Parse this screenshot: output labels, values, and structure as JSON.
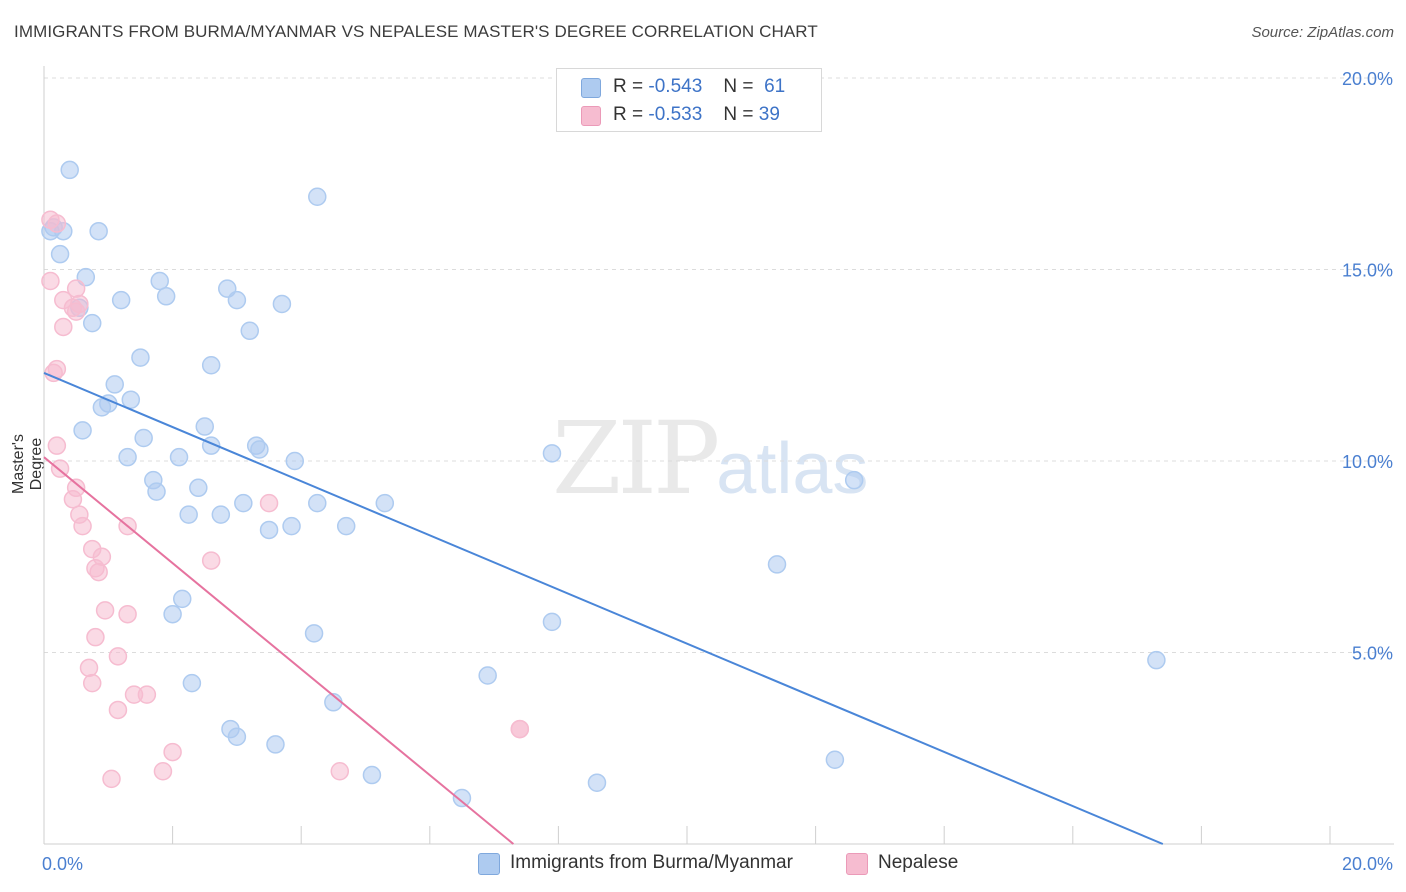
{
  "title": "IMMIGRANTS FROM BURMA/MYANMAR VS NEPALESE MASTER'S DEGREE CORRELATION CHART",
  "source": "Source: ZipAtlas.com",
  "watermark": {
    "zip": "ZIP",
    "atlas": "atlas"
  },
  "legend": {
    "rows": [
      {
        "r_label": "R =",
        "r_value": "-0.543",
        "n_label": "N =",
        "n_value": "61",
        "color": "#aecbf0"
      },
      {
        "r_label": "R =",
        "r_value": "-0.533",
        "n_label": "N =",
        "n_value": "39",
        "color": "#f6bcd0"
      }
    ]
  },
  "chart_data": {
    "type": "scatter",
    "title": "IMMIGRANTS FROM BURMA/MYANMAR VS NEPALESE MASTER'S DEGREE CORRELATION CHART",
    "xlabel": "",
    "ylabel": "Master's Degree",
    "xlim": [
      0,
      20
    ],
    "ylim": [
      0,
      20
    ],
    "x_tick_labels": [
      "0.0%",
      "20.0%"
    ],
    "y_ticks": [
      5,
      10,
      15,
      20
    ],
    "y_tick_labels": [
      "5.0%",
      "10.0%",
      "15.0%",
      "20.0%"
    ],
    "grid": true,
    "legend_position": "top-center",
    "series": [
      {
        "name": "Immigrants from Burma/Myanmar",
        "color": "#4a86d8",
        "fill": "#aecbf0",
        "points": [
          [
            0.15,
            16.1
          ],
          [
            0.1,
            16.0
          ],
          [
            0.3,
            16.0
          ],
          [
            0.25,
            15.4
          ],
          [
            0.4,
            17.6
          ],
          [
            0.85,
            16.0
          ],
          [
            0.65,
            14.8
          ],
          [
            0.55,
            14.0
          ],
          [
            0.75,
            13.6
          ],
          [
            1.2,
            14.2
          ],
          [
            1.8,
            14.7
          ],
          [
            1.9,
            14.3
          ],
          [
            2.85,
            14.5
          ],
          [
            3.0,
            14.2
          ],
          [
            3.7,
            14.1
          ],
          [
            3.2,
            13.4
          ],
          [
            1.5,
            12.7
          ],
          [
            2.6,
            12.5
          ],
          [
            4.25,
            16.9
          ],
          [
            1.1,
            12.0
          ],
          [
            1.0,
            11.5
          ],
          [
            1.35,
            11.6
          ],
          [
            0.9,
            11.4
          ],
          [
            0.6,
            10.8
          ],
          [
            1.55,
            10.6
          ],
          [
            2.5,
            10.9
          ],
          [
            3.3,
            10.4
          ],
          [
            3.35,
            10.3
          ],
          [
            2.6,
            10.4
          ],
          [
            1.3,
            10.1
          ],
          [
            2.1,
            10.1
          ],
          [
            3.9,
            10.0
          ],
          [
            1.7,
            9.5
          ],
          [
            1.75,
            9.2
          ],
          [
            2.4,
            9.3
          ],
          [
            3.1,
            8.9
          ],
          [
            4.25,
            8.9
          ],
          [
            5.3,
            8.9
          ],
          [
            2.25,
            8.6
          ],
          [
            2.75,
            8.6
          ],
          [
            3.5,
            8.2
          ],
          [
            3.85,
            8.3
          ],
          [
            4.7,
            8.3
          ],
          [
            7.9,
            10.2
          ],
          [
            12.6,
            9.5
          ],
          [
            11.4,
            7.3
          ],
          [
            2.15,
            6.4
          ],
          [
            2.0,
            6.0
          ],
          [
            4.2,
            5.5
          ],
          [
            7.9,
            5.8
          ],
          [
            17.3,
            4.8
          ],
          [
            6.9,
            4.4
          ],
          [
            2.3,
            4.2
          ],
          [
            4.5,
            3.7
          ],
          [
            2.9,
            3.0
          ],
          [
            3.0,
            2.8
          ],
          [
            3.6,
            2.6
          ],
          [
            5.1,
            1.8
          ],
          [
            8.6,
            1.6
          ],
          [
            12.3,
            2.2
          ],
          [
            6.5,
            1.2
          ]
        ],
        "trend_line": {
          "x": [
            0.0,
            17.4
          ],
          "y": [
            12.3,
            0.0
          ]
        }
      },
      {
        "name": "Nepalese",
        "color": "#e6739f",
        "fill": "#f6bcd0",
        "points": [
          [
            0.1,
            16.3
          ],
          [
            0.1,
            14.7
          ],
          [
            0.3,
            14.2
          ],
          [
            0.5,
            14.5
          ],
          [
            0.55,
            14.1
          ],
          [
            0.3,
            13.5
          ],
          [
            0.5,
            13.9
          ],
          [
            0.2,
            12.4
          ],
          [
            0.15,
            12.3
          ],
          [
            0.2,
            10.4
          ],
          [
            0.25,
            9.8
          ],
          [
            0.45,
            9.0
          ],
          [
            0.55,
            8.6
          ],
          [
            0.5,
            9.3
          ],
          [
            0.6,
            8.3
          ],
          [
            0.75,
            7.7
          ],
          [
            0.9,
            7.5
          ],
          [
            0.8,
            7.2
          ],
          [
            0.85,
            7.1
          ],
          [
            0.95,
            6.1
          ],
          [
            1.3,
            6.0
          ],
          [
            1.3,
            8.3
          ],
          [
            2.6,
            7.4
          ],
          [
            3.5,
            8.9
          ],
          [
            0.8,
            5.4
          ],
          [
            1.15,
            4.9
          ],
          [
            0.7,
            4.6
          ],
          [
            0.75,
            4.2
          ],
          [
            1.4,
            3.9
          ],
          [
            1.6,
            3.9
          ],
          [
            1.15,
            3.5
          ],
          [
            2.0,
            2.4
          ],
          [
            1.85,
            1.9
          ],
          [
            1.05,
            1.7
          ],
          [
            4.6,
            1.9
          ],
          [
            7.4,
            3.0
          ],
          [
            7.4,
            3.0
          ],
          [
            0.45,
            14.0
          ],
          [
            0.2,
            16.2
          ]
        ],
        "trend_line": {
          "x": [
            0.0,
            7.3
          ],
          "y": [
            10.1,
            0.0
          ]
        }
      }
    ]
  }
}
